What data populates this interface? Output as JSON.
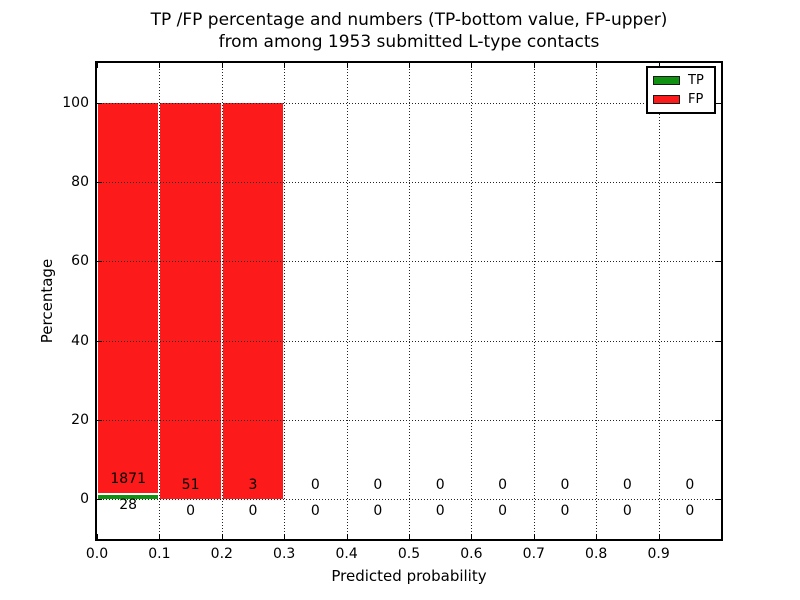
{
  "title": {
    "line1": "TP /FP percentage and numbers (TP-bottom value, FP-upper)",
    "line2": "from among 1953 submitted L-type contacts"
  },
  "legend": {
    "items": [
      {
        "label": "TP",
        "color": "#119111"
      },
      {
        "label": "FP",
        "color": "#fc1a1a"
      }
    ]
  },
  "chart_data": {
    "type": "bar",
    "stacked": true,
    "title": "TP /FP percentage and numbers (TP-bottom value, FP-upper) from among 1953 submitted L-type contacts",
    "xlabel": "Predicted probability",
    "ylabel": "Percentage",
    "total_submitted": 1953,
    "xlim": [
      0.0,
      1.0
    ],
    "ylim": [
      -10,
      110
    ],
    "bin_width": 0.1,
    "bin_edges": [
      0.0,
      0.1,
      0.2,
      0.3,
      0.4,
      0.5,
      0.6,
      0.7,
      0.8,
      0.9,
      1.0
    ],
    "x_tick_values": [
      0.0,
      0.1,
      0.2,
      0.3,
      0.4,
      0.5,
      0.6,
      0.7,
      0.8,
      0.9
    ],
    "x_tick_labels": [
      "0.0",
      "0.1",
      "0.2",
      "0.3",
      "0.4",
      "0.5",
      "0.6",
      "0.7",
      "0.8",
      "0.9"
    ],
    "y_tick_values": [
      0,
      20,
      40,
      60,
      80,
      100
    ],
    "y_tick_labels": [
      "0",
      "20",
      "40",
      "60",
      "80",
      "100"
    ],
    "grid": true,
    "legend_position": "upper right",
    "series": [
      {
        "name": "TP",
        "color": "#119111",
        "counts": [
          28,
          0,
          0,
          0,
          0,
          0,
          0,
          0,
          0,
          0
        ],
        "percent": [
          1.47,
          0,
          0,
          0,
          0,
          0,
          0,
          0,
          0,
          0
        ]
      },
      {
        "name": "FP",
        "color": "#fc1a1a",
        "counts": [
          1871,
          51,
          3,
          0,
          0,
          0,
          0,
          0,
          0,
          0
        ],
        "percent": [
          98.53,
          100,
          100,
          0,
          0,
          0,
          0,
          0,
          0,
          0
        ]
      }
    ]
  }
}
